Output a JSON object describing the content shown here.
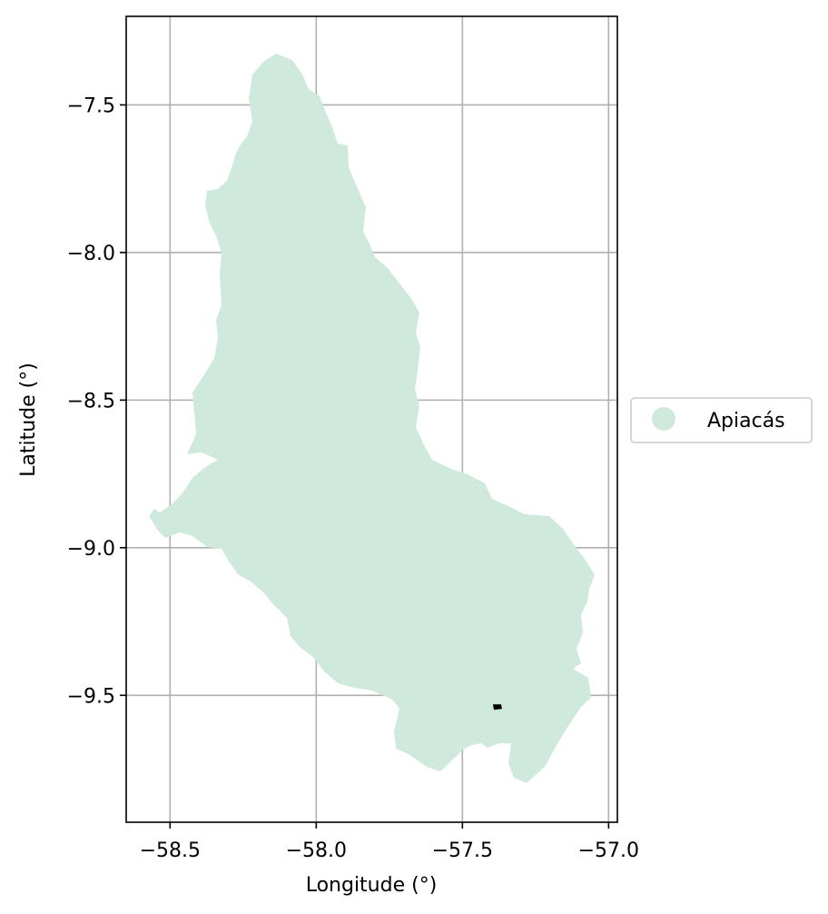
{
  "map": {
    "xlabel": "Longitude (°)",
    "ylabel": "Latitude (°)",
    "x_ticks": [
      "−58.5",
      "−58.0",
      "−57.5",
      "−57.0"
    ],
    "y_ticks": [
      "−7.5",
      "−8.0",
      "−8.5",
      "−9.0",
      "−9.5"
    ],
    "legend": {
      "label": "Apiacás",
      "placement": "center-right, outside plot"
    },
    "colors": {
      "basin_fill": "#cfeadd",
      "marker": "#000000",
      "grid": "#b0b0b0"
    }
  },
  "chart_data": {
    "type": "map",
    "xlabel": "Longitude (°)",
    "ylabel": "Latitude (°)",
    "xlim": [
      -58.65,
      -56.97
    ],
    "ylim": [
      -9.93,
      -7.2
    ],
    "x_ticks": [
      -58.5,
      -58.0,
      -57.5,
      -57.0
    ],
    "y_ticks": [
      -7.5,
      -8.0,
      -8.5,
      -9.0,
      -9.5
    ],
    "grid": true,
    "series": [
      {
        "name": "Apiacás",
        "kind": "polygon",
        "color": "#cfeadd"
      }
    ],
    "points": [
      {
        "lon": -57.38,
        "lat": -9.54,
        "color": "#000000"
      }
    ]
  }
}
